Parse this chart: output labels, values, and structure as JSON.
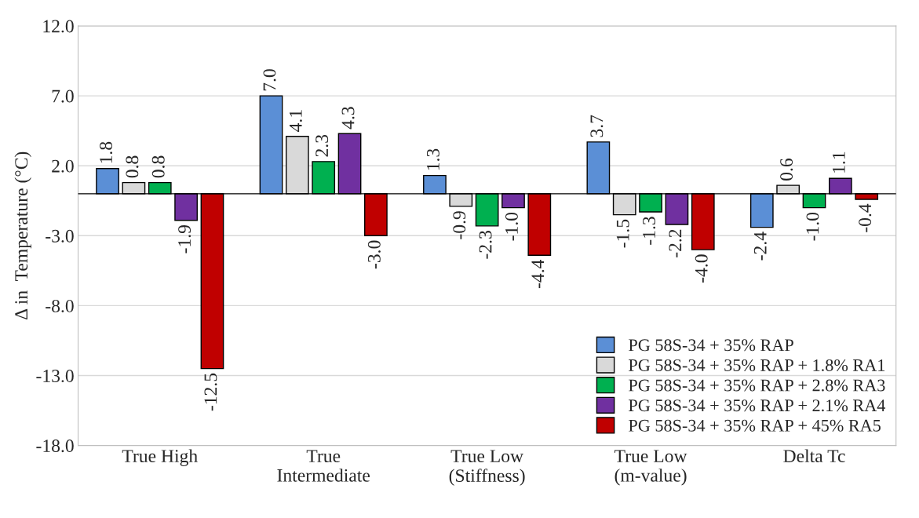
{
  "chart_data": {
    "type": "bar",
    "ylabel": "Δ in  Temperature (°C)",
    "categories": [
      "True High",
      "True\nIntermediate",
      "True Low\n(Stiffness)",
      "True Low\n(m-value)",
      "Delta Tc"
    ],
    "series": [
      {
        "name": "PG 58S-34 + 35% RAP",
        "color": "#5b8fd6",
        "values": [
          1.8,
          7.0,
          1.3,
          3.7,
          -2.4
        ],
        "value_labels": [
          "1.8",
          "7.0",
          "1.3",
          "3.7",
          "-2.4"
        ]
      },
      {
        "name": "PG 58S-34 + 35% RAP + 1.8% RA1",
        "color": "#d9d9d9",
        "values": [
          0.8,
          4.1,
          -0.9,
          -1.5,
          0.6
        ],
        "value_labels": [
          "0.8",
          "4.1",
          "-0.9",
          "-1.5",
          "0.6"
        ]
      },
      {
        "name": "PG 58S-34 + 35% RAP + 2.8% RA3",
        "color": "#00b050",
        "values": [
          0.8,
          2.3,
          -2.3,
          -1.3,
          -1.0
        ],
        "value_labels": [
          "0.8",
          "2.3",
          "-2.3",
          "-1.3",
          "-1.0"
        ]
      },
      {
        "name": "PG 58S-34 + 35% RAP + 2.1% RA4",
        "color": "#7030a0",
        "values": [
          -1.9,
          4.3,
          -1.0,
          -2.2,
          1.1
        ],
        "value_labels": [
          "-1.9",
          "4.3",
          "-1.0",
          "-2.2",
          "1.1"
        ]
      },
      {
        "name": "PG 58S-34 + 35% RAP + 45% RA5",
        "color": "#c00000",
        "values": [
          -12.5,
          -3.0,
          -4.4,
          -4.0,
          -0.4
        ],
        "value_labels": [
          "-12.5",
          "-3.0",
          "-4.4",
          "-4.0",
          "-0.4"
        ]
      }
    ],
    "ylim": [
      -18,
      12
    ],
    "yticks": [
      {
        "value": -18,
        "label": "-18.0"
      },
      {
        "value": -13,
        "label": "-13.0"
      },
      {
        "value": -8,
        "label": "-8.0"
      },
      {
        "value": -3,
        "label": "-3.0"
      },
      {
        "value": 2,
        "label": "2.0"
      },
      {
        "value": 7,
        "label": "7.0"
      },
      {
        "value": 12,
        "label": "12.0"
      }
    ],
    "grid": "y",
    "legend": "bottom right"
  }
}
